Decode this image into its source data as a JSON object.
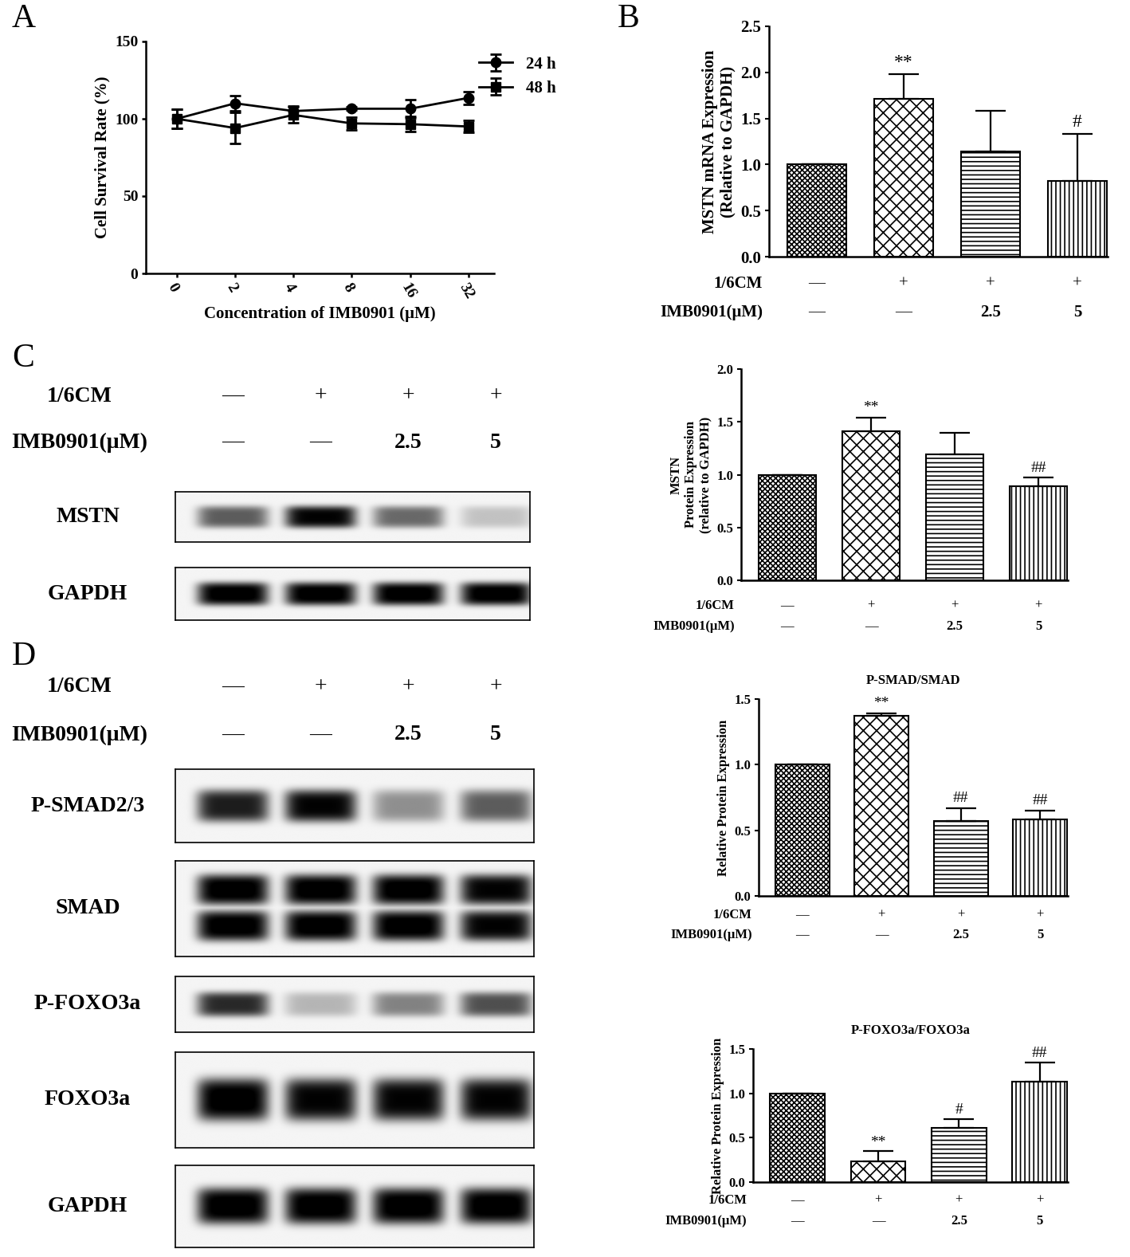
{
  "chart_data": [
    {
      "type": "line",
      "panel": "A",
      "x_label": "Concentration of IMB0901 (μM)",
      "y_label": "Cell Survival Rate (%)",
      "categories": [
        "0",
        "2",
        "4",
        "8",
        "16",
        "32"
      ],
      "series": [
        {
          "name": "24 h",
          "color": "#000000",
          "marker": "circle",
          "values": [
            100,
            110,
            105,
            106.5,
            106.5,
            113.5
          ],
          "errors": [
            6,
            5,
            3,
            1,
            6,
            4
          ]
        },
        {
          "name": "48 h",
          "color": "#000000",
          "marker": "square",
          "values": [
            100,
            94,
            102.5,
            97,
            96.5,
            95
          ],
          "errors": [
            6,
            10,
            5,
            4,
            5,
            4
          ]
        }
      ],
      "ylim": [
        0,
        150
      ],
      "yticks": [
        0,
        50,
        100,
        150
      ],
      "legend": "upper right"
    },
    {
      "type": "bar",
      "panel": "B",
      "y_label": "MSTN mRNA Expression\n(Relative to GAPDH)",
      "categories": [
        null,
        null,
        null,
        null
      ],
      "values": [
        1.0,
        1.71,
        1.14,
        0.82
      ],
      "errors": [
        0,
        0.27,
        0.44,
        0.51
      ],
      "annotations": [
        null,
        "**",
        null,
        "#"
      ],
      "color": "#ffffff",
      "conditions": [
        {
          "label": "1/6CM",
          "values": [
            "—",
            "+",
            "+",
            "+"
          ]
        },
        {
          "label": "IMB0901(μM)",
          "values": [
            "—",
            "—",
            "2.5",
            "5"
          ]
        }
      ],
      "ylim": [
        0,
        2.5
      ],
      "yticks": [
        {
          "value": 0,
          "label": "0.0"
        },
        {
          "value": 0.5,
          "label": "0.5"
        },
        {
          "value": 1,
          "label": "1.0"
        },
        {
          "value": 1.5,
          "label": "1.5"
        },
        {
          "value": 2,
          "label": "2.0"
        },
        {
          "value": 2.5,
          "label": "2.5"
        }
      ]
    },
    {
      "type": "bar",
      "y_label": "MSTN\nProtein Expression\n(relative to GAPDH)",
      "categories": [
        null,
        null,
        null,
        null
      ],
      "values": [
        1.0,
        1.41,
        1.19,
        0.89
      ],
      "errors": [
        0,
        0.13,
        0.21,
        0.08
      ],
      "annotations": [
        null,
        "**",
        null,
        "##"
      ],
      "color": "#ffffff",
      "conditions": [
        {
          "label": "1/6CM",
          "values": [
            "—",
            "+",
            "+",
            "+"
          ]
        },
        {
          "label": "IMB0901(μM)",
          "values": [
            "—",
            "—",
            "2.5",
            "5"
          ]
        }
      ],
      "ylim": [
        0,
        2.0
      ],
      "yticks": [
        {
          "value": 0,
          "label": "0.0"
        },
        {
          "value": 0.5,
          "label": "0.5"
        },
        {
          "value": 1,
          "label": "1.0"
        },
        {
          "value": 1.5,
          "label": "1.5"
        },
        {
          "value": 2,
          "label": "2.0"
        }
      ]
    },
    {
      "type": "bar",
      "title": "P-SMAD/SMAD",
      "y_label": "Relative Protein Expression",
      "categories": [
        null,
        null,
        null,
        null
      ],
      "values": [
        1.0,
        1.37,
        0.57,
        0.58
      ],
      "errors": [
        0,
        0.02,
        0.1,
        0.07
      ],
      "annotations": [
        null,
        "**",
        "##",
        "##"
      ],
      "color": "#ffffff",
      "conditions": [
        {
          "label": "1/6CM",
          "values": [
            "—",
            "+",
            "+",
            "+"
          ]
        },
        {
          "label": "IMB0901(μM)",
          "values": [
            "—",
            "—",
            "2.5",
            "5"
          ]
        }
      ],
      "ylim": [
        0,
        1.5
      ],
      "yticks": [
        {
          "value": 0,
          "label": "0.0"
        },
        {
          "value": 0.5,
          "label": "0.5"
        },
        {
          "value": 1,
          "label": "1.0"
        },
        {
          "value": 1.5,
          "label": "1.5"
        }
      ]
    },
    {
      "type": "bar",
      "title": "P-FOXO3a/FOXO3a",
      "y_label": "Relative Protein Expression",
      "categories": [
        null,
        null,
        null,
        null
      ],
      "values": [
        1.0,
        0.23,
        0.61,
        1.13
      ],
      "errors": [
        0,
        0.12,
        0.1,
        0.22
      ],
      "annotations": [
        null,
        "**",
        "#",
        "##"
      ],
      "color": "#ffffff",
      "conditions": [
        {
          "label": "1/6CM",
          "values": [
            "—",
            "+",
            "+",
            "+"
          ]
        },
        {
          "label": "IMB0901(μM)",
          "values": [
            "—",
            "—",
            "2.5",
            "5"
          ]
        }
      ],
      "ylim": [
        0,
        1.5
      ],
      "yticks": [
        {
          "value": 0,
          "label": "0.0"
        },
        {
          "value": 0.5,
          "label": "0.5"
        },
        {
          "value": 1,
          "label": "1.0"
        },
        {
          "value": 1.5,
          "label": "1.5"
        }
      ]
    }
  ],
  "blots": [
    {
      "panel": "C",
      "conditions": [
        {
          "label": "1/6CM",
          "values": [
            "—",
            "+",
            "+",
            "+"
          ]
        },
        {
          "label": "IMB0901(μM)",
          "values": [
            "—",
            "—",
            "2.5",
            "5"
          ]
        }
      ],
      "rows": [
        {
          "label": "MSTN",
          "band_intensity": [
            0.6,
            0.95,
            0.55,
            0.2
          ],
          "double_band": false
        },
        {
          "label": "GAPDH",
          "band_intensity": [
            1,
            1,
            1,
            1
          ],
          "double_band": false
        }
      ]
    },
    {
      "panel": "D",
      "conditions": [
        {
          "label": "1/6CM",
          "values": [
            "—",
            "+",
            "+",
            "+"
          ]
        },
        {
          "label": "IMB0901(μM)",
          "values": [
            "—",
            "—",
            "2.5",
            "5"
          ]
        }
      ],
      "rows": [
        {
          "label": "P-SMAD2/3",
          "band_intensity": [
            0.85,
            0.95,
            0.4,
            0.6
          ],
          "double_band": false
        },
        {
          "label": "SMAD",
          "band_intensity": [
            1,
            1,
            1,
            0.95
          ],
          "double_band": true
        },
        {
          "label": "P-FOXO3a",
          "band_intensity": [
            0.8,
            0.25,
            0.45,
            0.65
          ],
          "double_band": false
        },
        {
          "label": "FOXO3a",
          "band_intensity": [
            1,
            0.95,
            0.95,
            0.95
          ],
          "double_band": false
        },
        {
          "label": "GAPDH",
          "band_intensity": [
            1,
            1,
            1,
            1
          ],
          "double_band": false
        }
      ]
    }
  ]
}
